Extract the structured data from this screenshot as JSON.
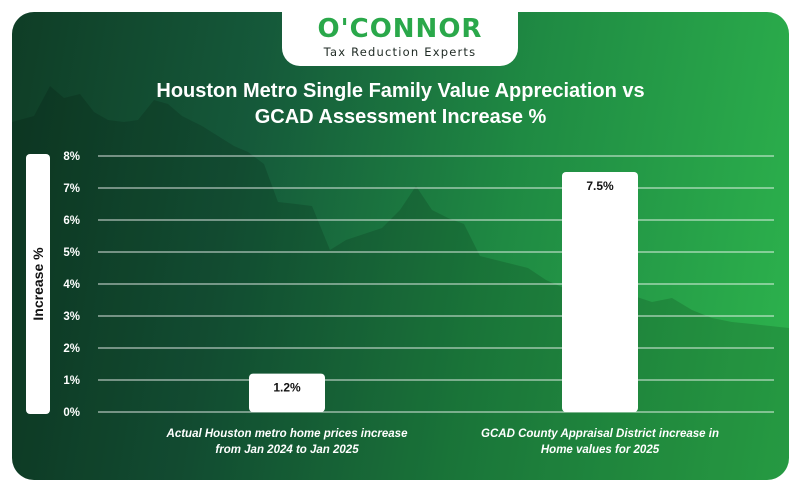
{
  "brand": {
    "name": "O'CONNOR",
    "tagline": "Tax Reduction Experts"
  },
  "colors": {
    "background_dark": "#0f3d26",
    "background_light": "#2db44d",
    "brand_green": "#2aa84a",
    "bar": "#ffffff",
    "text": "#ffffff"
  },
  "chart_data": {
    "type": "bar",
    "title": "Houston Metro Single Family Value Appreciation vs GCAD Assessment Increase %",
    "title_lines": [
      "Houston Metro Single Family Value Appreciation vs",
      "GCAD Assessment Increase %"
    ],
    "ylabel": "Increase %",
    "xlabel": "",
    "ylim": [
      0,
      8
    ],
    "yticks": [
      "0%",
      "1%",
      "2%",
      "3%",
      "4%",
      "5%",
      "6%",
      "7%",
      "8%"
    ],
    "grid": true,
    "categories": [
      "Actual Houston metro home prices increase from Jan 2024 to Jan 2025",
      "GCAD County Appraisal District increase in Home values for 2025"
    ],
    "category_lines": [
      [
        "Actual Houston metro home prices increase",
        "from Jan 2024 to Jan 2025"
      ],
      [
        "GCAD County Appraisal District increase in",
        "Home values for 2025"
      ]
    ],
    "values": [
      1.2,
      7.5
    ],
    "data_labels": [
      "1.2%",
      "7.5%"
    ]
  }
}
